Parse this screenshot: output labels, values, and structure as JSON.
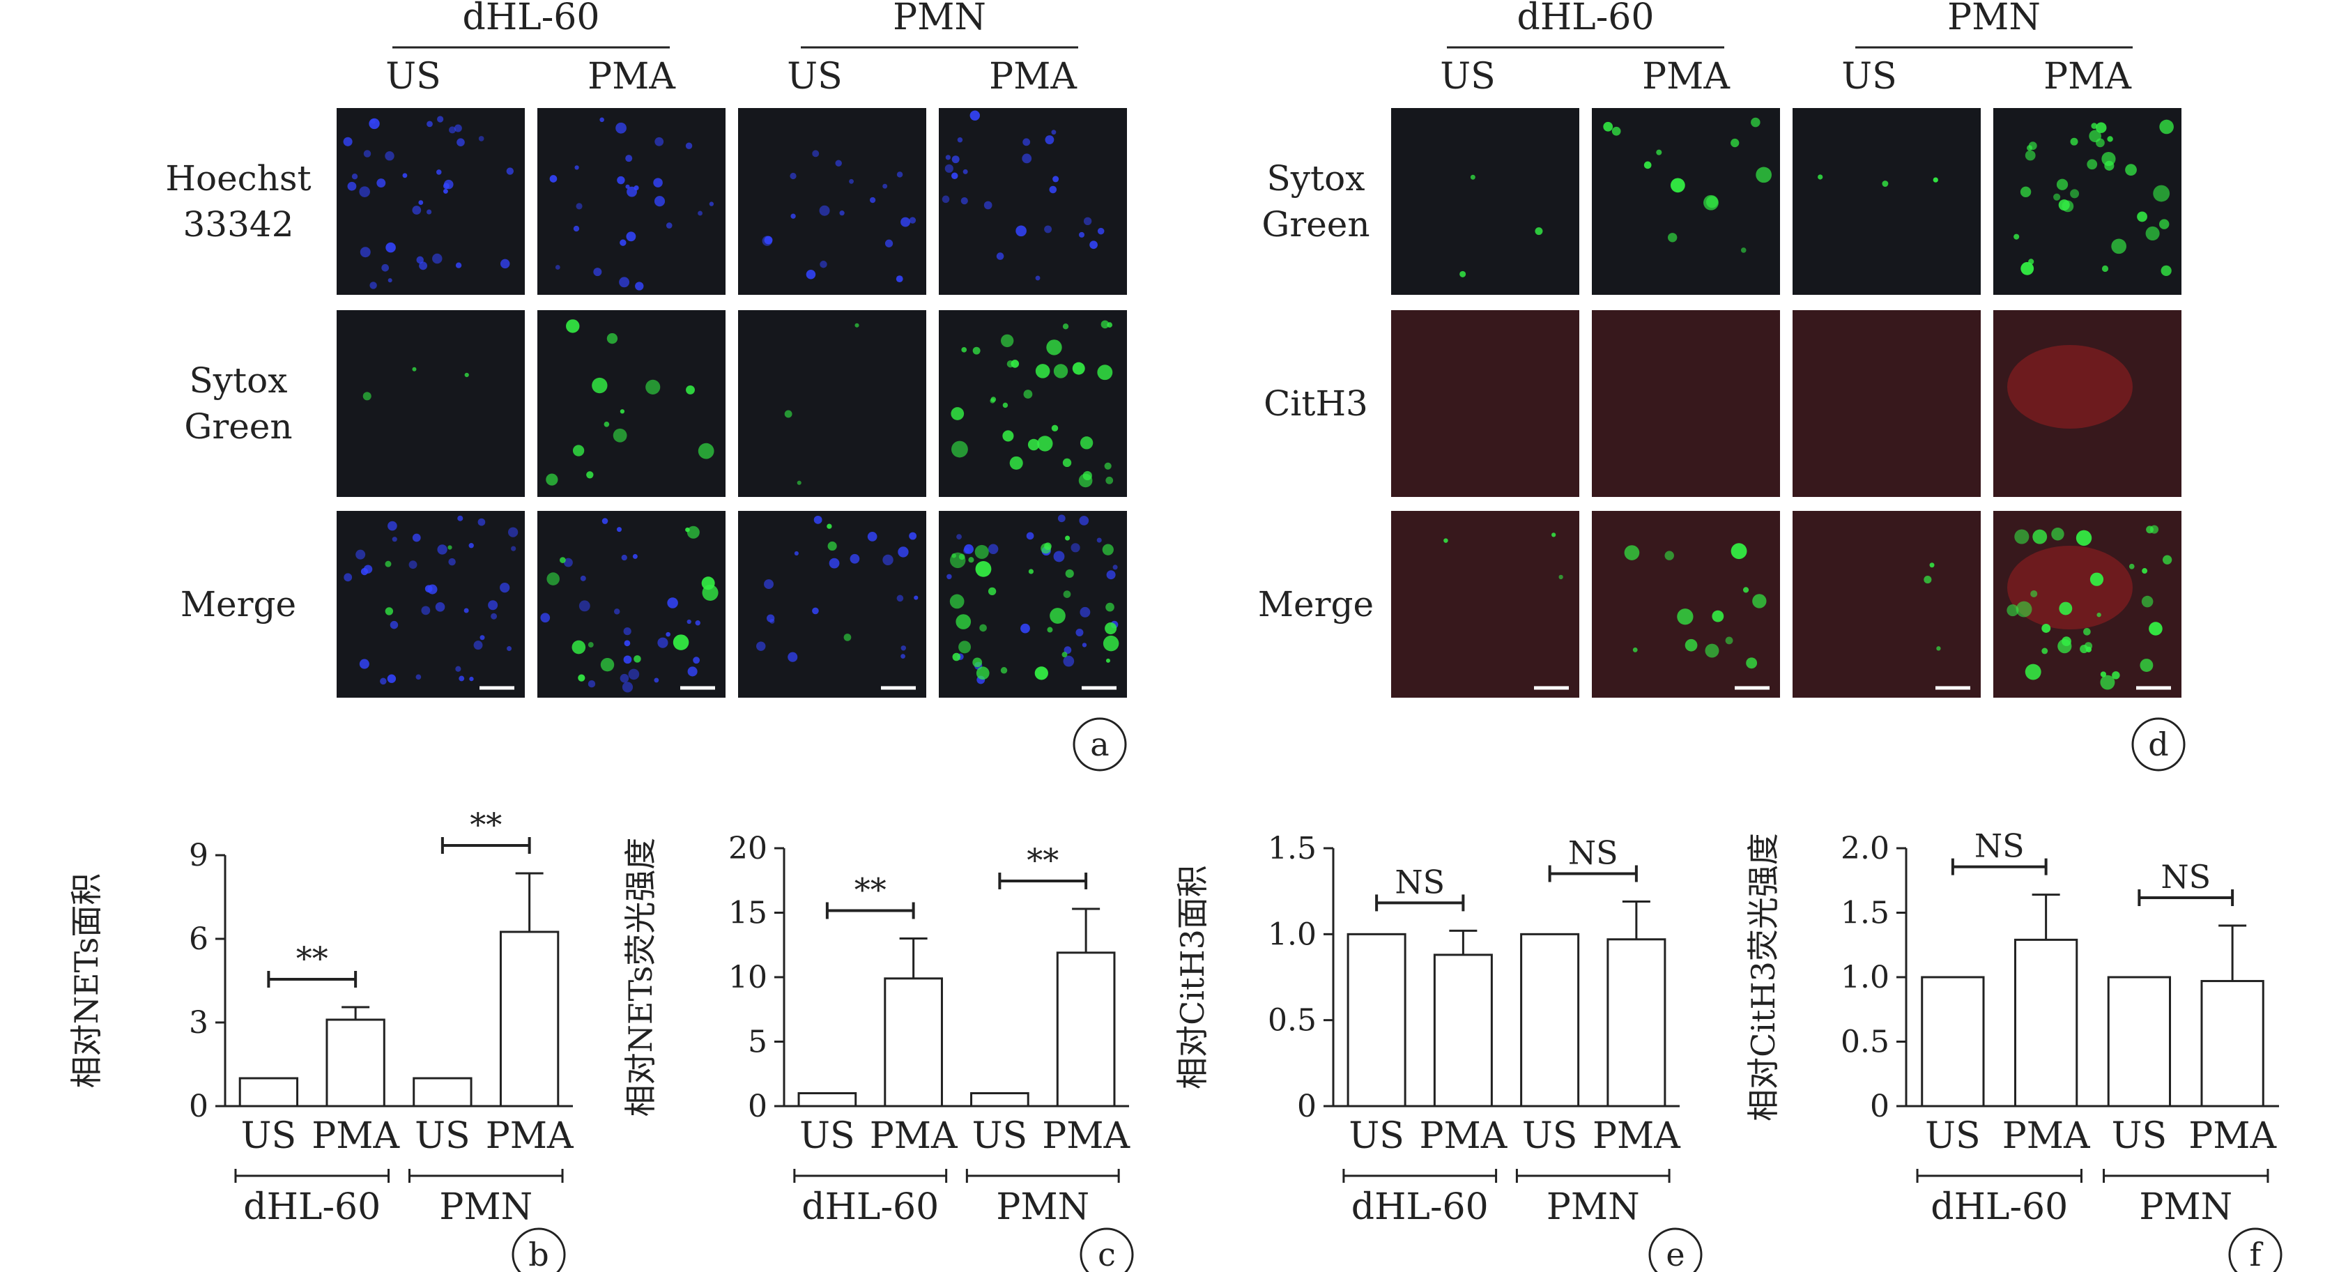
{
  "panel_a": {
    "letter": "a",
    "groups": [
      "dHL-60",
      "PMN"
    ],
    "conditions": [
      "US",
      "PMA",
      "US",
      "PMA"
    ],
    "rows": [
      {
        "lines": [
          "Hoechst",
          "33342"
        ],
        "stain": "blue"
      },
      {
        "lines": [
          "Sytox",
          "Green"
        ],
        "stain": "green"
      },
      {
        "lines": [
          "Merge"
        ],
        "stain": "merge-blue"
      }
    ]
  },
  "panel_d": {
    "letter": "d",
    "groups": [
      "dHL-60",
      "PMN"
    ],
    "conditions": [
      "US",
      "PMA",
      "US",
      "PMA"
    ],
    "rows": [
      {
        "lines": [
          "Sytox",
          "Green"
        ],
        "stain": "green"
      },
      {
        "lines": [
          "CitH3"
        ],
        "stain": "red"
      },
      {
        "lines": [
          "Merge"
        ],
        "stain": "merge-red"
      }
    ]
  },
  "colors": {
    "tile_background": "#15171c",
    "hoechst": "#3344ff",
    "sytox": "#33ee44",
    "cith3": "#d42222",
    "bar_fill": "#ffffff",
    "axis": "#222222"
  },
  "chart_data": [
    {
      "type": "bar",
      "letter": "b",
      "ylabel": "相对NETs面积",
      "ylim": [
        0,
        9
      ],
      "yticks": [
        0,
        3,
        6,
        9
      ],
      "categories": [
        "US",
        "PMA",
        "US",
        "PMA"
      ],
      "groups": [
        "dHL-60",
        "PMN"
      ],
      "values": [
        1.0,
        3.1,
        1.0,
        6.25
      ],
      "errors": [
        0,
        0.45,
        0,
        2.1
      ],
      "significance": [
        {
          "label": "**",
          "bars": [
            0,
            1
          ]
        },
        {
          "label": "**",
          "bars": [
            2,
            3
          ]
        }
      ]
    },
    {
      "type": "bar",
      "letter": "c",
      "ylabel": "相对NETs荧光强度",
      "ylim": [
        0,
        20
      ],
      "yticks": [
        0,
        5,
        10,
        15,
        20
      ],
      "categories": [
        "US",
        "PMA",
        "US",
        "PMA"
      ],
      "groups": [
        "dHL-60",
        "PMN"
      ],
      "values": [
        1.0,
        9.9,
        1.0,
        11.9
      ],
      "errors": [
        0,
        3.1,
        0,
        3.4
      ],
      "significance": [
        {
          "label": "**",
          "bars": [
            0,
            1
          ]
        },
        {
          "label": "**",
          "bars": [
            2,
            3
          ]
        }
      ]
    },
    {
      "type": "bar",
      "letter": "e",
      "ylabel": "相对CitH3面积",
      "ylim": [
        0,
        1.5
      ],
      "yticks": [
        "0",
        "0.5",
        "1.0",
        "1.5"
      ],
      "categories": [
        "US",
        "PMA",
        "US",
        "PMA"
      ],
      "groups": [
        "dHL-60",
        "PMN"
      ],
      "values": [
        1.0,
        0.88,
        1.0,
        0.97
      ],
      "errors": [
        0,
        0.14,
        0,
        0.22
      ],
      "significance": [
        {
          "label": "NS",
          "bars": [
            0,
            1
          ]
        },
        {
          "label": "NS",
          "bars": [
            2,
            3
          ]
        }
      ]
    },
    {
      "type": "bar",
      "letter": "f",
      "ylabel": "相对CitH3荧光强度",
      "ylim": [
        0,
        2.0
      ],
      "yticks": [
        "0",
        "0.5",
        "1.0",
        "1.5",
        "2.0"
      ],
      "categories": [
        "US",
        "PMA",
        "US",
        "PMA"
      ],
      "groups": [
        "dHL-60",
        "PMN"
      ],
      "values": [
        1.0,
        1.29,
        1.0,
        0.97
      ],
      "errors": [
        0,
        0.35,
        0,
        0.43
      ],
      "significance": [
        {
          "label": "NS",
          "bars": [
            0,
            1
          ]
        },
        {
          "label": "NS",
          "bars": [
            2,
            3
          ]
        }
      ]
    }
  ]
}
